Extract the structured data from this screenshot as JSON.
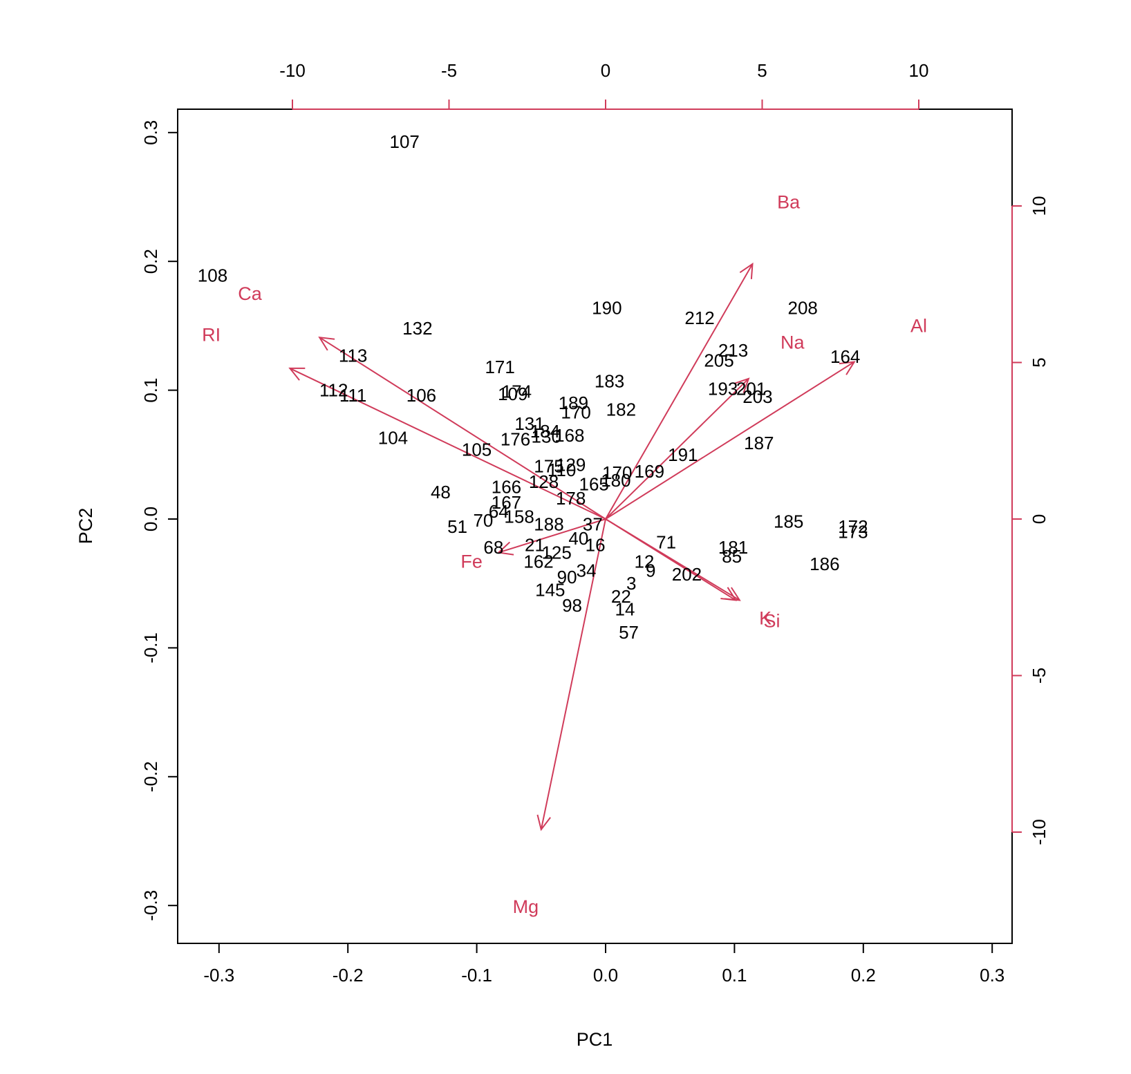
{
  "chart_data": {
    "type": "scatter",
    "subtype": "pca-biplot",
    "xlabel": "PC1",
    "ylabel": "PC2",
    "xlim": [
      -0.3,
      0.3
    ],
    "ylim": [
      -0.3,
      0.3
    ],
    "x_ticks": [
      -0.3,
      -0.2,
      -0.1,
      0.0,
      0.1,
      0.2,
      0.3
    ],
    "x_tick_labels": [
      "-0.3",
      "-0.2",
      "-0.1",
      "0.0",
      "0.1",
      "0.2",
      "0.3"
    ],
    "y_ticks": [
      -0.3,
      -0.2,
      -0.1,
      0.0,
      0.1,
      0.2,
      0.3
    ],
    "y_tick_labels": [
      "-0.3",
      "-0.2",
      "-0.1",
      "0.0",
      "0.1",
      "0.2",
      "0.3"
    ],
    "loading_x_ticks": [
      -10,
      -5,
      0,
      5,
      10
    ],
    "loading_x_tick_labels": [
      "-10",
      "-5",
      "0",
      "5",
      "10"
    ],
    "loading_y_ticks": [
      -10,
      -5,
      0,
      5,
      10
    ],
    "loading_y_tick_labels": [
      "-10",
      "-5",
      "0",
      "5",
      "10"
    ],
    "grid": false,
    "colors": {
      "points": "#000000",
      "loadings": "#d03b5a",
      "axis": "#000000"
    },
    "points": [
      {
        "label": "107",
        "x": -0.156,
        "y": 0.293
      },
      {
        "label": "108",
        "x": -0.305,
        "y": 0.189
      },
      {
        "label": "190",
        "x": 0.001,
        "y": 0.164
      },
      {
        "label": "208",
        "x": 0.153,
        "y": 0.164
      },
      {
        "label": "212",
        "x": 0.073,
        "y": 0.156
      },
      {
        "label": "132",
        "x": -0.146,
        "y": 0.148
      },
      {
        "label": "164",
        "x": 0.186,
        "y": 0.126
      },
      {
        "label": "113",
        "x": -0.196,
        "y": 0.127
      },
      {
        "label": "171",
        "x": -0.082,
        "y": 0.118
      },
      {
        "label": "183",
        "x": 0.003,
        "y": 0.107
      },
      {
        "label": "112",
        "x": -0.211,
        "y": 0.1
      },
      {
        "label": "111",
        "x": -0.196,
        "y": 0.096
      },
      {
        "label": "106",
        "x": -0.143,
        "y": 0.096
      },
      {
        "label": "174",
        "x": -0.069,
        "y": 0.099
      },
      {
        "label": "109",
        "x": -0.072,
        "y": 0.097
      },
      {
        "label": "189",
        "x": -0.025,
        "y": 0.09
      },
      {
        "label": "170",
        "x": -0.023,
        "y": 0.083
      },
      {
        "label": "182",
        "x": 0.012,
        "y": 0.085
      },
      {
        "label": "193",
        "x": 0.091,
        "y": 0.101
      },
      {
        "label": "203",
        "x": 0.118,
        "y": 0.095
      },
      {
        "label": "201",
        "x": 0.113,
        "y": 0.101
      },
      {
        "label": "213",
        "x": 0.099,
        "y": 0.131
      },
      {
        "label": "205",
        "x": 0.088,
        "y": 0.123
      },
      {
        "label": "187",
        "x": 0.119,
        "y": 0.059
      },
      {
        "label": "191",
        "x": 0.06,
        "y": 0.05
      },
      {
        "label": "104",
        "x": -0.165,
        "y": 0.063
      },
      {
        "label": "105",
        "x": -0.1,
        "y": 0.054
      },
      {
        "label": "131",
        "x": -0.059,
        "y": 0.074
      },
      {
        "label": "176",
        "x": -0.07,
        "y": 0.062
      },
      {
        "label": "184",
        "x": -0.047,
        "y": 0.068
      },
      {
        "label": "130",
        "x": -0.046,
        "y": 0.064
      },
      {
        "label": "168",
        "x": -0.028,
        "y": 0.065
      },
      {
        "label": "175",
        "x": -0.044,
        "y": 0.041
      },
      {
        "label": "129",
        "x": -0.027,
        "y": 0.042
      },
      {
        "label": "110",
        "x": -0.034,
        "y": 0.038
      },
      {
        "label": "170",
        "x": 0.009,
        "y": 0.036
      },
      {
        "label": "169",
        "x": 0.034,
        "y": 0.037
      },
      {
        "label": "180",
        "x": 0.008,
        "y": 0.03
      },
      {
        "label": "165",
        "x": -0.009,
        "y": 0.027
      },
      {
        "label": "128",
        "x": -0.048,
        "y": 0.029
      },
      {
        "label": "166",
        "x": -0.077,
        "y": 0.025
      },
      {
        "label": "178",
        "x": -0.027,
        "y": 0.016
      },
      {
        "label": "48",
        "x": -0.128,
        "y": 0.021
      },
      {
        "label": "167",
        "x": -0.077,
        "y": 0.013
      },
      {
        "label": "64",
        "x": -0.083,
        "y": 0.006
      },
      {
        "label": "158",
        "x": -0.067,
        "y": 0.002
      },
      {
        "label": "188",
        "x": -0.044,
        "y": -0.004
      },
      {
        "label": "186",
        "x": 0.17,
        "y": -0.035
      },
      {
        "label": "185",
        "x": 0.142,
        "y": -0.002
      },
      {
        "label": "172",
        "x": 0.192,
        "y": -0.006
      },
      {
        "label": "173",
        "x": 0.192,
        "y": -0.01
      },
      {
        "label": "181",
        "x": 0.099,
        "y": -0.022
      },
      {
        "label": "85",
        "x": 0.098,
        "y": -0.029
      },
      {
        "label": "71",
        "x": 0.047,
        "y": -0.018
      },
      {
        "label": "202",
        "x": 0.063,
        "y": -0.043
      },
      {
        "label": "51",
        "x": -0.115,
        "y": -0.006
      },
      {
        "label": "70",
        "x": -0.095,
        "y": -0.001
      },
      {
        "label": "68",
        "x": -0.087,
        "y": -0.022
      },
      {
        "label": "37",
        "x": -0.01,
        "y": -0.004
      },
      {
        "label": "21",
        "x": -0.055,
        "y": -0.02
      },
      {
        "label": "162",
        "x": -0.052,
        "y": -0.033
      },
      {
        "label": "125",
        "x": -0.038,
        "y": -0.026
      },
      {
        "label": "57",
        "x": 0.018,
        "y": -0.088
      },
      {
        "label": "98",
        "x": -0.026,
        "y": -0.067
      },
      {
        "label": "145",
        "x": -0.043,
        "y": -0.055
      },
      {
        "label": "40",
        "x": -0.021,
        "y": -0.015
      },
      {
        "label": "16",
        "x": -0.008,
        "y": -0.02
      },
      {
        "label": "14",
        "x": 0.015,
        "y": -0.07
      },
      {
        "label": "22",
        "x": 0.012,
        "y": -0.06
      },
      {
        "label": "3",
        "x": 0.02,
        "y": -0.05
      },
      {
        "label": "9",
        "x": 0.035,
        "y": -0.04
      },
      {
        "label": "12",
        "x": 0.03,
        "y": -0.033
      },
      {
        "label": "90",
        "x": -0.03,
        "y": -0.045
      },
      {
        "label": "34",
        "x": -0.015,
        "y": -0.04
      }
    ],
    "loadings": [
      {
        "name": "RI",
        "x": -0.245,
        "y": 0.117,
        "lx": -0.306,
        "ly": 0.143
      },
      {
        "name": "Ca",
        "x": -0.222,
        "y": 0.141,
        "lx": -0.276,
        "ly": 0.175
      },
      {
        "name": "Ba",
        "x": 0.114,
        "y": 0.198,
        "lx": 0.142,
        "ly": 0.246
      },
      {
        "name": "Na",
        "x": 0.111,
        "y": 0.109,
        "lx": 0.145,
        "ly": 0.137
      },
      {
        "name": "Al",
        "x": 0.193,
        "y": 0.122,
        "lx": 0.243,
        "ly": 0.15
      },
      {
        "name": "Fe",
        "x": -0.083,
        "y": -0.026,
        "lx": -0.104,
        "ly": -0.033
      },
      {
        "name": "Mg",
        "x": -0.05,
        "y": -0.241,
        "lx": -0.062,
        "ly": -0.301
      },
      {
        "name": "Si",
        "x": 0.104,
        "y": -0.063,
        "lx": 0.129,
        "ly": -0.079
      },
      {
        "name": "K",
        "x": 0.101,
        "y": -0.063,
        "lx": 0.124,
        "ly": -0.077
      }
    ]
  }
}
